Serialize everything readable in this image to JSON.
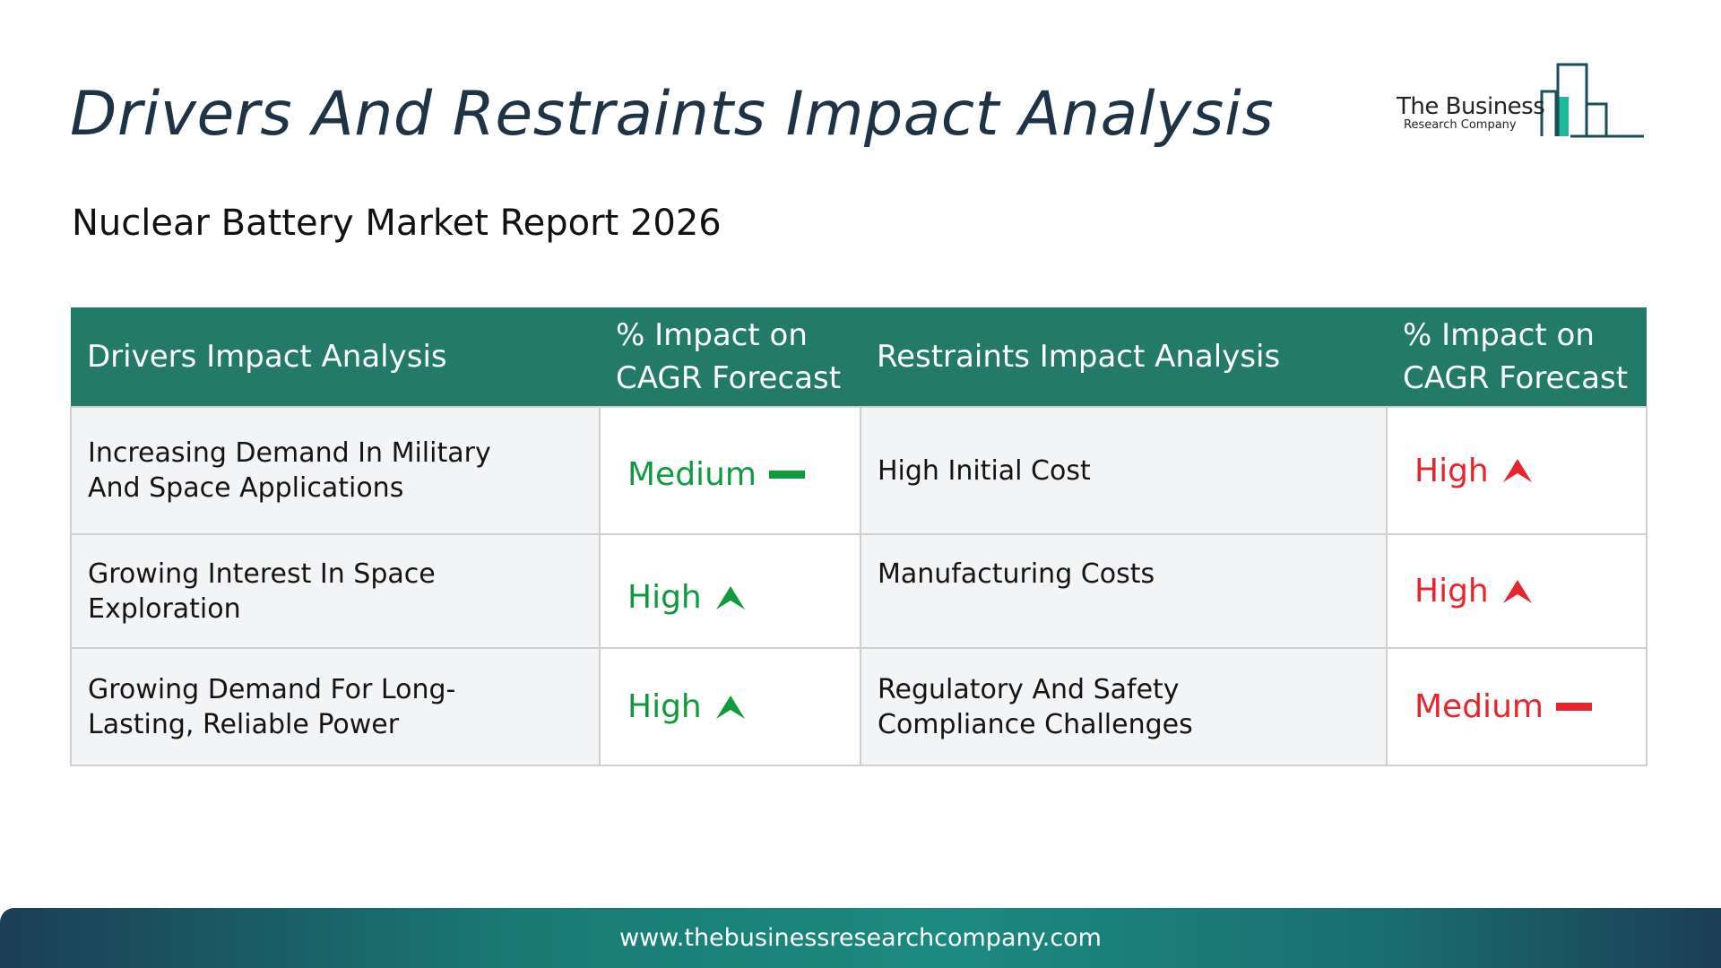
{
  "title": "Drivers And Restraints Impact Analysis",
  "subtitle": "Nuclear Battery Market Report 2026",
  "logo": {
    "line1": "The Business",
    "line2": "Research Company",
    "icon": "bar-chart-logo-icon"
  },
  "table": {
    "headers": {
      "drivers": "Drivers Impact Analysis",
      "drivers_impact_line1": "% Impact on",
      "drivers_impact_line2": "CAGR Forecast",
      "restraints": "Restraints Impact Analysis",
      "restraints_impact_line1": "% Impact on",
      "restraints_impact_line2": "CAGR Forecast"
    },
    "rows": [
      {
        "driver_line1": "Increasing Demand In Military",
        "driver_line2": "And Space Applications",
        "driver_impact": "Medium",
        "driver_icon": "dash-icon",
        "restraint_line1": "High Initial Cost",
        "restraint_line2": "",
        "restraint_impact": "High",
        "restraint_icon": "arrow-up-icon"
      },
      {
        "driver_line1": "Growing Interest In Space",
        "driver_line2": "Exploration",
        "driver_impact": "High",
        "driver_icon": "arrow-up-icon",
        "restraint_line1": "Manufacturing Costs",
        "restraint_line2": "",
        "restraint_impact": "High",
        "restraint_icon": "arrow-up-icon"
      },
      {
        "driver_line1": "Growing Demand For Long-",
        "driver_line2": "Lasting, Reliable Power",
        "driver_impact": "High",
        "driver_icon": "arrow-up-icon",
        "restraint_line1": "Regulatory And Safety",
        "restraint_line2": "Compliance Challenges",
        "restraint_impact": "Medium",
        "restraint_icon": "dash-icon"
      }
    ]
  },
  "colors": {
    "header_bg": "#237a69",
    "driver_impact": "#0f9a3d",
    "restraint_impact": "#e8242d",
    "title": "#1f3347"
  },
  "footer": {
    "url": "www.thebusinessresearchcompany.com"
  }
}
